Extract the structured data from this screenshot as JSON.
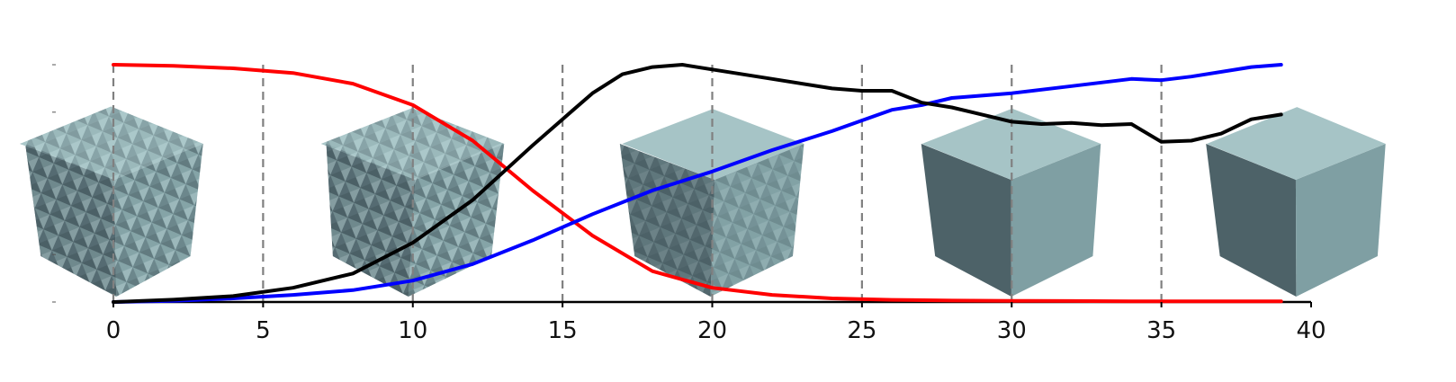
{
  "chart_data": {
    "type": "line",
    "xlim": [
      0,
      40
    ],
    "ylim": [
      0,
      1
    ],
    "x_ticks": [
      "0",
      "5",
      "10",
      "15",
      "20",
      "25",
      "30",
      "35",
      "40"
    ],
    "grid": "vertical dashed lines at x ticks",
    "series": [
      {
        "color": "#ff0000",
        "x": [
          0,
          2,
          4,
          6,
          8,
          10,
          12,
          14,
          16,
          18,
          20,
          22,
          24,
          26,
          28,
          30,
          32,
          34,
          36,
          38,
          39
        ],
        "y": [
          1.0,
          0.995,
          0.985,
          0.965,
          0.92,
          0.83,
          0.68,
          0.47,
          0.28,
          0.13,
          0.06,
          0.03,
          0.015,
          0.009,
          0.006,
          0.005,
          0.004,
          0.003,
          0.003,
          0.003,
          0.003
        ]
      },
      {
        "color": "#0000ff",
        "x": [
          0,
          2,
          4,
          6,
          8,
          10,
          12,
          14,
          16,
          18,
          20,
          22,
          24,
          26,
          27,
          28,
          30,
          32,
          34,
          35,
          36,
          38,
          39
        ],
        "y": [
          0.0,
          0.005,
          0.015,
          0.03,
          0.05,
          0.09,
          0.16,
          0.26,
          0.37,
          0.47,
          0.55,
          0.64,
          0.72,
          0.81,
          0.83,
          0.86,
          0.88,
          0.91,
          0.94,
          0.935,
          0.95,
          0.99,
          1.0
        ]
      },
      {
        "color": "#000000",
        "x": [
          0,
          2,
          4,
          6,
          8,
          10,
          12,
          14,
          15,
          16,
          17,
          18,
          19,
          20,
          22,
          24,
          25,
          26,
          27,
          28,
          29,
          30,
          31,
          32,
          33,
          34,
          35,
          36,
          37,
          38,
          39
        ],
        "y": [
          0.0,
          0.01,
          0.025,
          0.06,
          0.12,
          0.25,
          0.43,
          0.66,
          0.77,
          0.88,
          0.96,
          0.99,
          1.0,
          0.98,
          0.94,
          0.9,
          0.89,
          0.89,
          0.84,
          0.82,
          0.79,
          0.76,
          0.75,
          0.755,
          0.745,
          0.75,
          0.675,
          0.68,
          0.71,
          0.77,
          0.79
        ]
      }
    ],
    "mesh_icons": [
      {
        "x": 0,
        "name": "rough-mesh-cube-icon"
      },
      {
        "x": 10,
        "name": "rough-mesh-cube-icon"
      },
      {
        "x": 20,
        "name": "partially-smoothed-cube-icon"
      },
      {
        "x": 30,
        "name": "smoothed-cube-icon"
      },
      {
        "x": 39.5,
        "name": "smooth-cube-icon"
      }
    ],
    "colors": {
      "mesh_light": "#a6c4c6",
      "mesh_mid": "#7f9fa3",
      "mesh_dark": "#4d6268"
    }
  }
}
